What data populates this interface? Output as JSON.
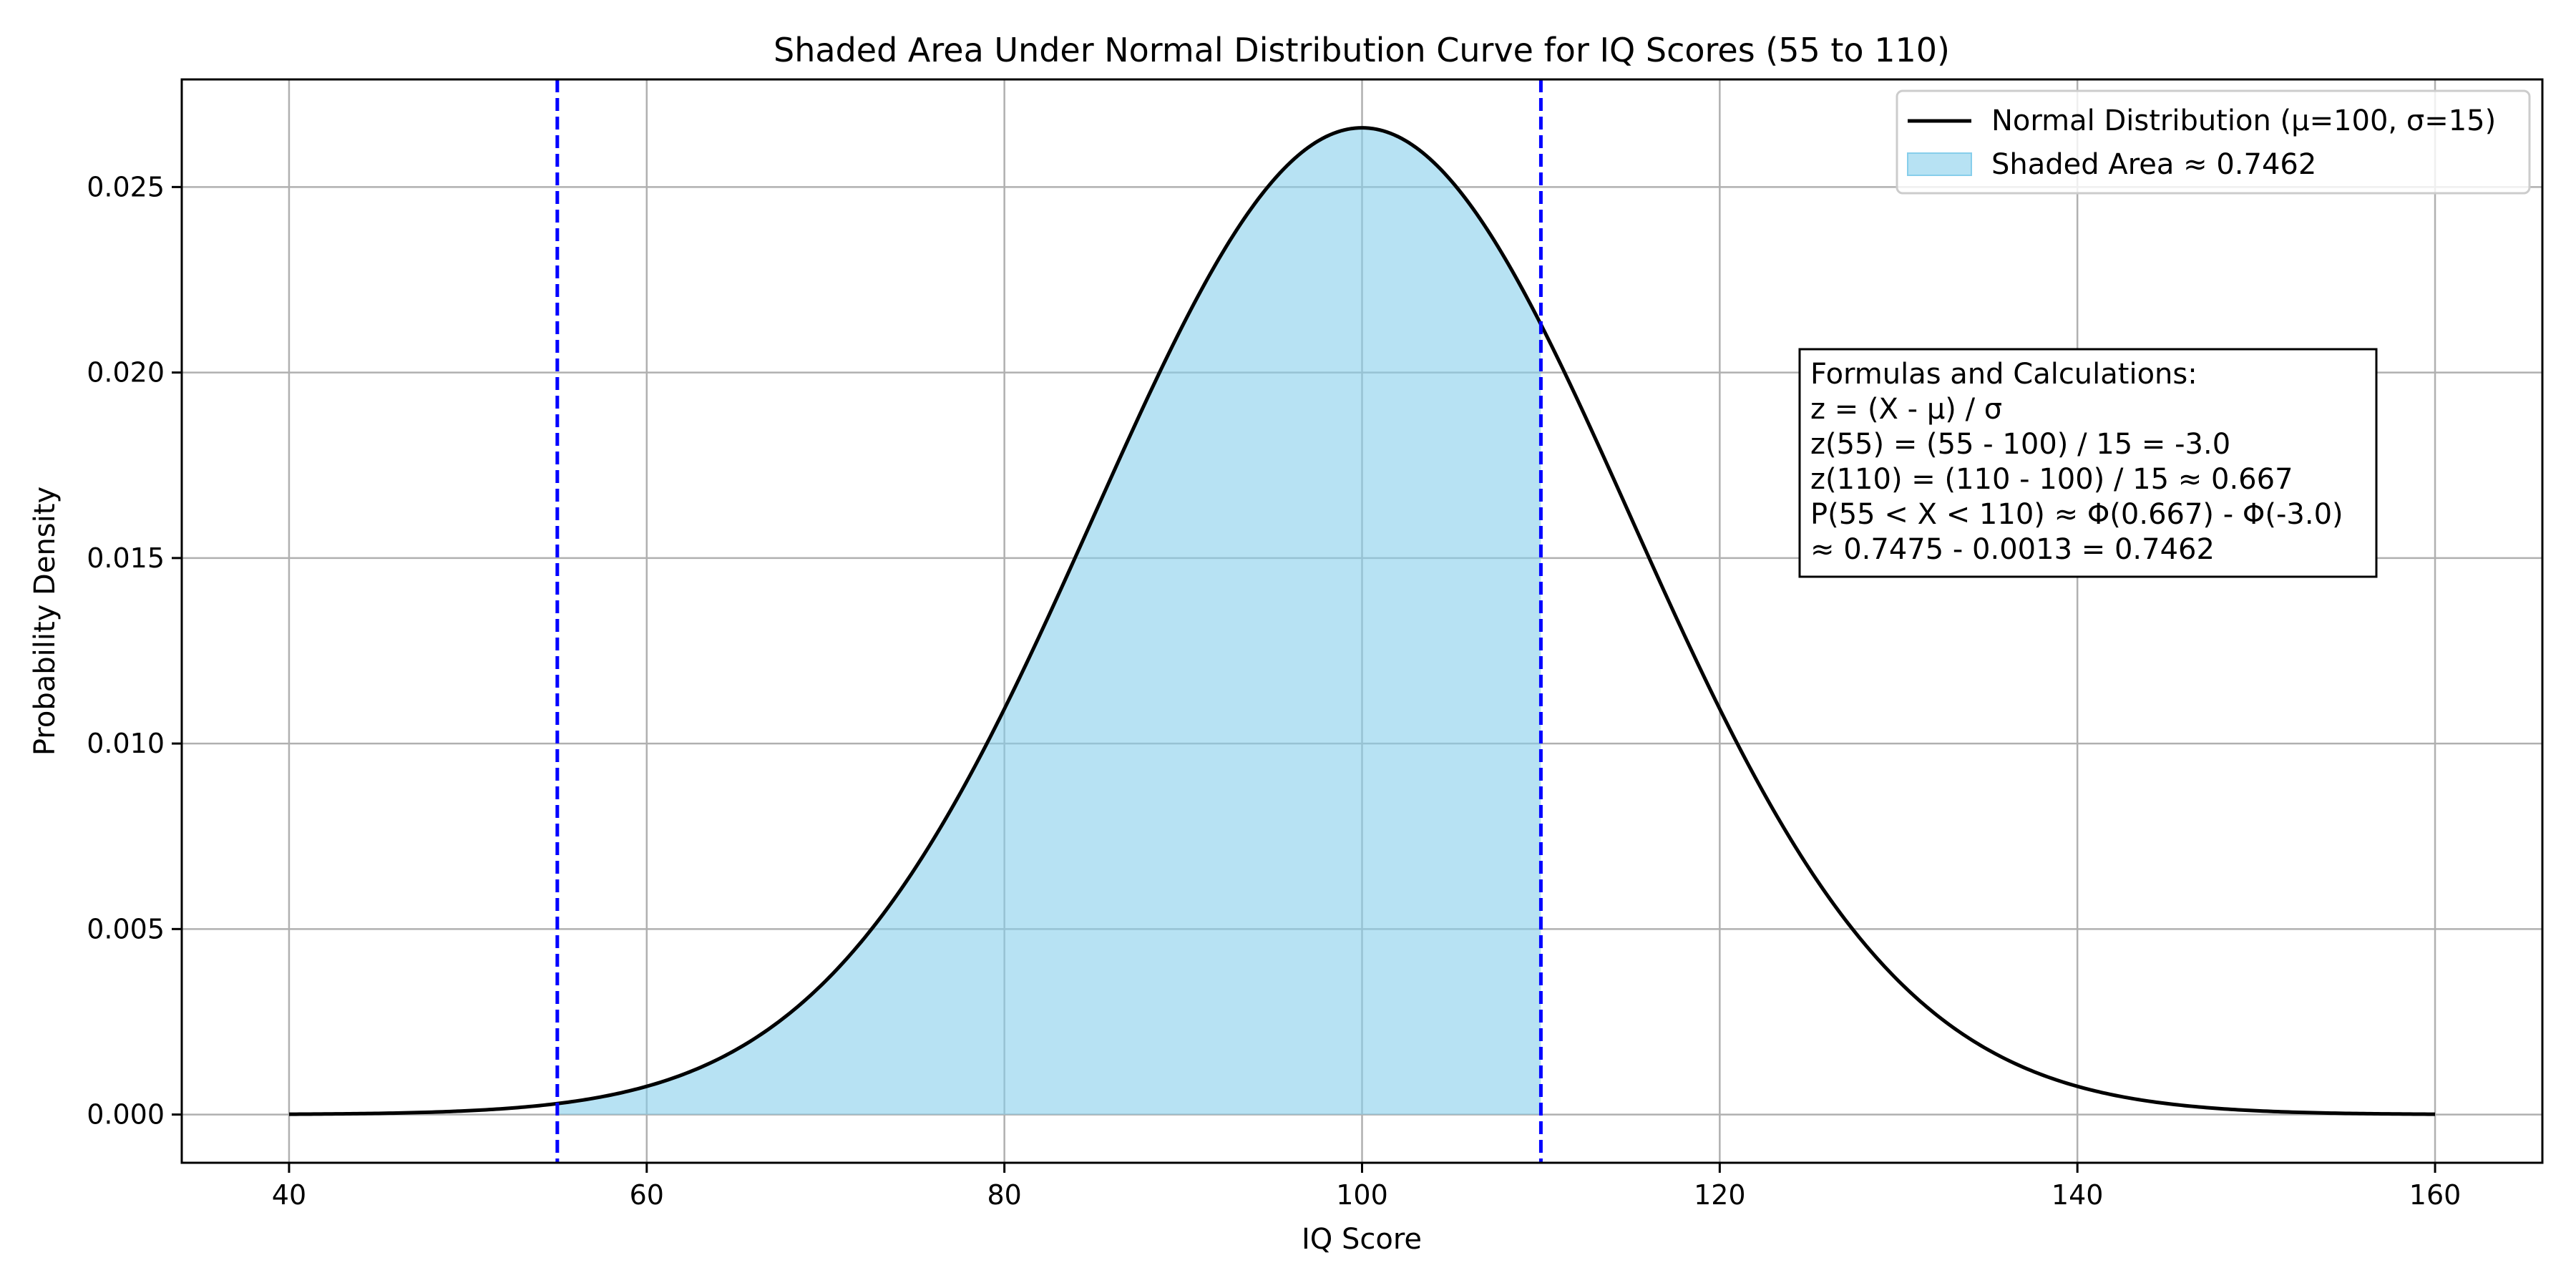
{
  "chart_data": {
    "type": "area",
    "title": "Shaded Area Under Normal Distribution Curve for IQ Scores (55 to 110)",
    "xlabel": "IQ Score",
    "ylabel": "Probability Density",
    "xlim": [
      34,
      166
    ],
    "ylim": [
      -0.0013,
      0.0279
    ],
    "xticks": [
      40,
      60,
      80,
      100,
      120,
      140,
      160
    ],
    "xtick_labels": [
      "40",
      "60",
      "80",
      "100",
      "120",
      "140",
      "160"
    ],
    "yticks": [
      0.0,
      0.005,
      0.01,
      0.015,
      0.02,
      0.025
    ],
    "ytick_labels": [
      "0.000",
      "0.005",
      "0.010",
      "0.015",
      "0.020",
      "0.025"
    ],
    "grid": true,
    "curve": {
      "mean": 100,
      "sd": 15,
      "x_range": [
        40,
        160
      ],
      "color": "#000000"
    },
    "shaded_region": {
      "from": 55,
      "to": 110,
      "color": "#87ceeb"
    },
    "vlines": [
      {
        "x": 55,
        "color": "#0000ff",
        "style": "dashed"
      },
      {
        "x": 110,
        "color": "#0000ff",
        "style": "dashed"
      }
    ],
    "legend": {
      "position": "top-right",
      "entries": [
        {
          "label": "Normal Distribution (μ=100, σ=15)",
          "kind": "line",
          "color": "#000000"
        },
        {
          "label": "Shaded Area ≈ 0.7462",
          "kind": "patch",
          "color": "#87ceeb"
        }
      ]
    },
    "annotation": {
      "lines": [
        "Formulas and Calculations:",
        "z = (X - μ) / σ",
        "z(55) = (55 - 100) / 15 = -3.0",
        "z(110) = (110 - 100) / 15 ≈ 0.667",
        "P(55 < X < 110) ≈ Φ(0.667) - Φ(-3.0)",
        "≈ 0.7475 - 0.0013 = 0.7462"
      ]
    }
  }
}
